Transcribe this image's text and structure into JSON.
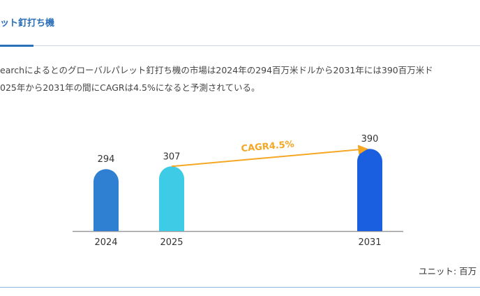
{
  "header": {
    "title": "ット釘打ち機"
  },
  "paragraph": [
    "earchによるとのグローバルパレット釘打ち機の市場は2024年の294百万米ドルから2031年には390百万米ド",
    "025年から2031年の間にCAGRは4.5%になると予測されている。"
  ],
  "chart_data": {
    "type": "bar",
    "categories": [
      "2024",
      "2025",
      "2031"
    ],
    "values": [
      294,
      307,
      390
    ],
    "colors": [
      "#2f7fd2",
      "#3ecbe6",
      "#1a5fe0"
    ],
    "annotation": "CAGR4.5%"
  },
  "unit": "ユニット: 百万"
}
